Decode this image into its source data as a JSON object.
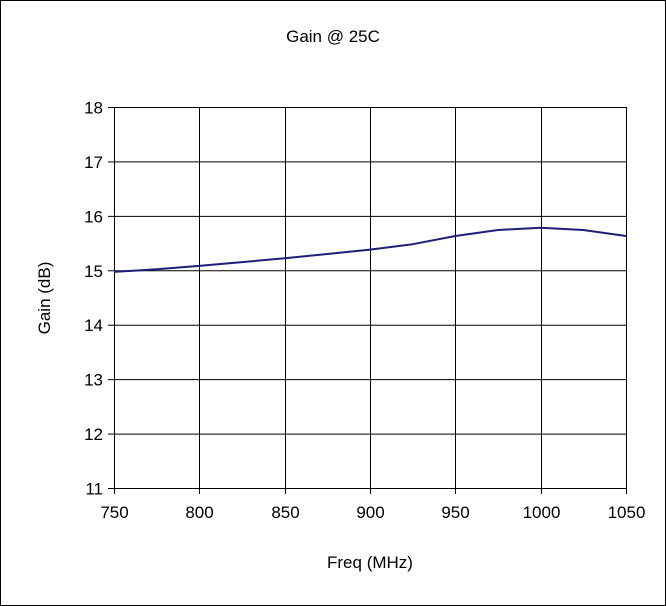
{
  "chart_data": {
    "type": "line",
    "title": "Gain @ 25C",
    "xlabel": "Freq (MHz)",
    "ylabel": "Gain (dB)",
    "xlim": [
      750,
      1050
    ],
    "ylim": [
      11,
      18
    ],
    "x_ticks": [
      750,
      800,
      850,
      900,
      950,
      1000,
      1050
    ],
    "y_ticks": [
      11,
      12,
      13,
      14,
      15,
      16,
      17,
      18
    ],
    "grid": true,
    "legend": "none",
    "series": [
      {
        "color": "#1f1f7a",
        "x": [
          750,
          775,
          800,
          825,
          850,
          875,
          900,
          925,
          950,
          975,
          1000,
          1025,
          1050
        ],
        "y": [
          14.97,
          15.02,
          15.08,
          15.15,
          15.22,
          15.3,
          15.38,
          15.48,
          15.63,
          15.74,
          15.78,
          15.74,
          15.63
        ]
      }
    ]
  }
}
